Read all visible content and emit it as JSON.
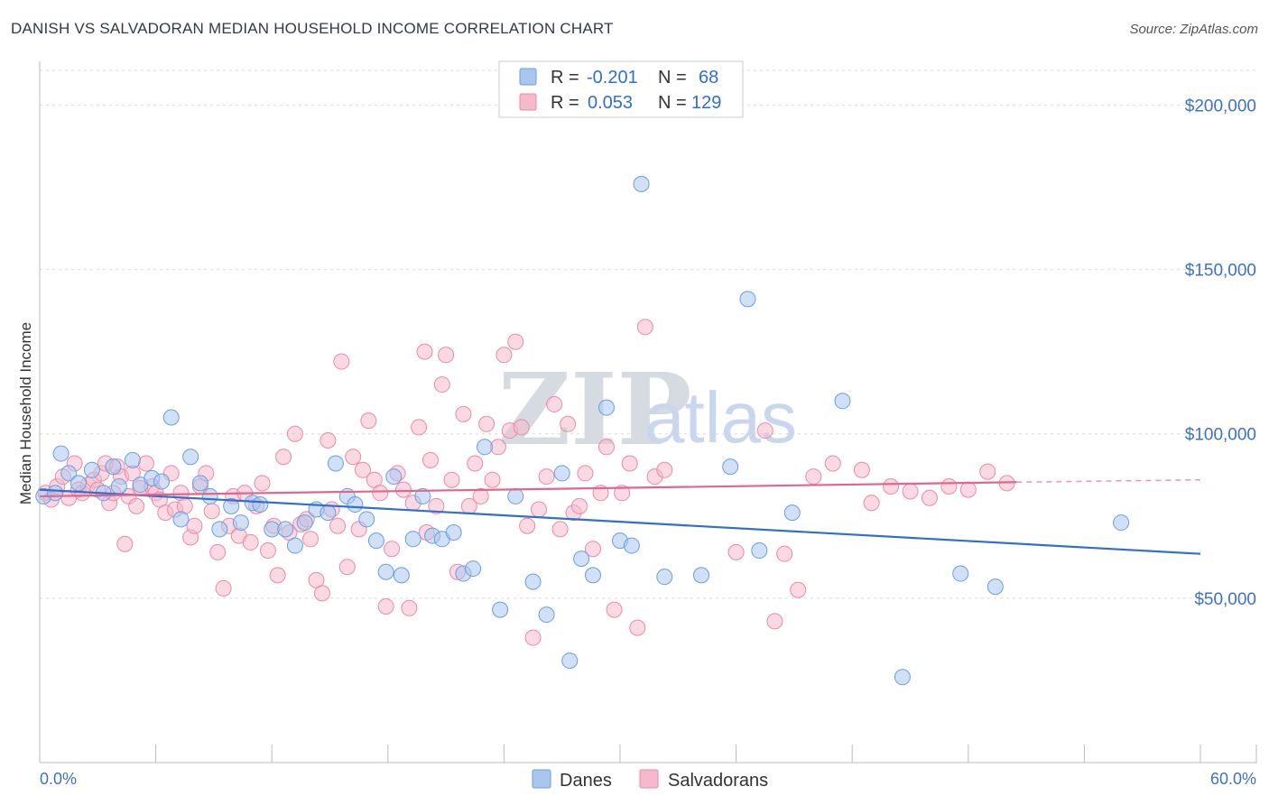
{
  "title": "DANISH VS SALVADORAN MEDIAN HOUSEHOLD INCOME CORRELATION CHART",
  "source": "Source: ZipAtlas.com",
  "watermark": {
    "zip": "ZIP",
    "atlas": "atlas"
  },
  "colors": {
    "danes_fill": "#a9c6ee",
    "danes_stroke": "#6b9de0",
    "danes_line": "#2f6fd0",
    "salv_fill": "#f6b9cb",
    "salv_stroke": "#e88aa8",
    "salv_line": "#e0668f",
    "axis_text": "#3d72c4",
    "grid": "#d9d9d9"
  },
  "legend": {
    "rows": [
      {
        "r_label": "R =",
        "r_value": "-0.201",
        "n_label": "N =",
        "n_value": "68"
      },
      {
        "r_label": "R =",
        "r_value": "0.053",
        "n_label": "N =",
        "n_value": "129"
      }
    ]
  },
  "bottom_legend": {
    "danes": "Danes",
    "salvadorans": "Salvadorans"
  },
  "chart_data": {
    "type": "scatter",
    "title": "DANISH VS SALVADORAN MEDIAN HOUSEHOLD INCOME CORRELATION CHART",
    "xlabel": "",
    "ylabel": "Median Household Income",
    "xlim": [
      0,
      60
    ],
    "ylim": [
      0,
      210000
    ],
    "x_tick_labels": [
      "0.0%",
      "60.0%"
    ],
    "y_ticks": [
      50000,
      100000,
      150000,
      200000
    ],
    "y_tick_labels": [
      "$50,000",
      "$100,000",
      "$150,000",
      "$200,000"
    ],
    "grid": true,
    "legend_position": "top-center",
    "series": [
      {
        "name": "Danes",
        "r": -0.201,
        "n": 68,
        "trend": {
          "x": [
            0,
            60
          ],
          "y": [
            83000,
            63500
          ]
        },
        "points": [
          [
            0.2,
            81000
          ],
          [
            0.8,
            82000
          ],
          [
            1.1,
            94000
          ],
          [
            1.5,
            88000
          ],
          [
            2.0,
            85000
          ],
          [
            2.7,
            89000
          ],
          [
            3.3,
            82000
          ],
          [
            3.8,
            90000
          ],
          [
            4.1,
            84000
          ],
          [
            4.8,
            92000
          ],
          [
            5.2,
            84500
          ],
          [
            5.8,
            86500
          ],
          [
            6.3,
            85500
          ],
          [
            6.8,
            105000
          ],
          [
            7.3,
            74000
          ],
          [
            7.8,
            93000
          ],
          [
            8.3,
            85000
          ],
          [
            8.8,
            81000
          ],
          [
            9.3,
            71000
          ],
          [
            9.9,
            78000
          ],
          [
            10.4,
            73000
          ],
          [
            11.0,
            79000
          ],
          [
            11.4,
            78500
          ],
          [
            12.0,
            71000
          ],
          [
            12.7,
            71000
          ],
          [
            13.2,
            66000
          ],
          [
            13.7,
            73000
          ],
          [
            14.3,
            77000
          ],
          [
            14.9,
            76000
          ],
          [
            15.3,
            91000
          ],
          [
            15.9,
            81000
          ],
          [
            16.3,
            78500
          ],
          [
            16.9,
            74000
          ],
          [
            17.4,
            67500
          ],
          [
            17.9,
            58000
          ],
          [
            18.3,
            87000
          ],
          [
            18.7,
            57000
          ],
          [
            19.3,
            68000
          ],
          [
            19.8,
            81000
          ],
          [
            20.3,
            69000
          ],
          [
            20.8,
            68000
          ],
          [
            21.4,
            70000
          ],
          [
            21.9,
            57500
          ],
          [
            22.4,
            59000
          ],
          [
            23.0,
            96000
          ],
          [
            23.8,
            46500
          ],
          [
            24.6,
            81000
          ],
          [
            25.5,
            55000
          ],
          [
            26.2,
            45000
          ],
          [
            27.0,
            88000
          ],
          [
            27.4,
            31000
          ],
          [
            28.0,
            62000
          ],
          [
            28.6,
            57000
          ],
          [
            29.3,
            108000
          ],
          [
            30.0,
            67500
          ],
          [
            30.6,
            66000
          ],
          [
            31.1,
            176000
          ],
          [
            32.3,
            56500
          ],
          [
            34.2,
            57000
          ],
          [
            35.7,
            90000
          ],
          [
            36.6,
            141000
          ],
          [
            37.2,
            64500
          ],
          [
            38.9,
            76000
          ],
          [
            41.5,
            110000
          ],
          [
            44.6,
            26000
          ],
          [
            47.6,
            57500
          ],
          [
            49.4,
            53500
          ],
          [
            55.9,
            73000
          ]
        ]
      },
      {
        "name": "Salvadorans",
        "r": 0.053,
        "n": 129,
        "trend": {
          "x": [
            0,
            50.5
          ],
          "y": [
            81000,
            85300
          ]
        },
        "trend_dashed": {
          "x": [
            50.5,
            60
          ],
          "y": [
            85300,
            86000
          ]
        },
        "points": [
          [
            0.3,
            82000
          ],
          [
            0.6,
            80000
          ],
          [
            0.9,
            84000
          ],
          [
            1.2,
            87000
          ],
          [
            1.5,
            80500
          ],
          [
            1.8,
            91000
          ],
          [
            2.0,
            83000
          ],
          [
            2.2,
            82000
          ],
          [
            2.5,
            84500
          ],
          [
            2.8,
            86000
          ],
          [
            3.0,
            83000
          ],
          [
            3.2,
            88000
          ],
          [
            3.4,
            91000
          ],
          [
            3.6,
            79000
          ],
          [
            3.8,
            82000
          ],
          [
            4.0,
            90000
          ],
          [
            4.2,
            87000
          ],
          [
            4.4,
            66500
          ],
          [
            4.6,
            81000
          ],
          [
            4.8,
            88000
          ],
          [
            5.0,
            78000
          ],
          [
            5.2,
            83500
          ],
          [
            5.5,
            91000
          ],
          [
            5.8,
            84000
          ],
          [
            6.0,
            82000
          ],
          [
            6.2,
            80000
          ],
          [
            6.5,
            76000
          ],
          [
            6.8,
            88000
          ],
          [
            7.0,
            77000
          ],
          [
            7.3,
            82000
          ],
          [
            7.5,
            78000
          ],
          [
            7.8,
            68500
          ],
          [
            8.0,
            72000
          ],
          [
            8.3,
            84000
          ],
          [
            8.6,
            88000
          ],
          [
            8.9,
            76500
          ],
          [
            9.2,
            64000
          ],
          [
            9.5,
            53000
          ],
          [
            9.8,
            72000
          ],
          [
            10.0,
            81000
          ],
          [
            10.3,
            69000
          ],
          [
            10.6,
            82000
          ],
          [
            10.9,
            67000
          ],
          [
            11.2,
            78000
          ],
          [
            11.5,
            85000
          ],
          [
            11.8,
            64500
          ],
          [
            12.1,
            72000
          ],
          [
            12.3,
            57000
          ],
          [
            12.6,
            93000
          ],
          [
            12.9,
            70000
          ],
          [
            13.2,
            100000
          ],
          [
            13.5,
            72500
          ],
          [
            13.8,
            74000
          ],
          [
            14.0,
            68000
          ],
          [
            14.3,
            55500
          ],
          [
            14.6,
            51500
          ],
          [
            14.9,
            98000
          ],
          [
            15.1,
            77000
          ],
          [
            15.4,
            72000
          ],
          [
            15.6,
            122000
          ],
          [
            15.9,
            59500
          ],
          [
            16.2,
            93000
          ],
          [
            16.5,
            71000
          ],
          [
            16.7,
            89000
          ],
          [
            17.0,
            104000
          ],
          [
            17.3,
            86000
          ],
          [
            17.6,
            82000
          ],
          [
            17.9,
            47500
          ],
          [
            18.2,
            65000
          ],
          [
            18.5,
            88000
          ],
          [
            18.8,
            83000
          ],
          [
            19.1,
            47000
          ],
          [
            19.3,
            79000
          ],
          [
            19.6,
            102000
          ],
          [
            19.9,
            125000
          ],
          [
            20.2,
            92000
          ],
          [
            20.5,
            78000
          ],
          [
            20.8,
            115000
          ],
          [
            21.0,
            124000
          ],
          [
            21.3,
            86000
          ],
          [
            21.6,
            58000
          ],
          [
            21.9,
            106000
          ],
          [
            22.2,
            78000
          ],
          [
            22.5,
            91000
          ],
          [
            22.8,
            81000
          ],
          [
            23.1,
            103000
          ],
          [
            23.4,
            86000
          ],
          [
            23.7,
            96000
          ],
          [
            24.0,
            124000
          ],
          [
            24.3,
            101000
          ],
          [
            24.6,
            128000
          ],
          [
            24.9,
            102000
          ],
          [
            25.2,
            72000
          ],
          [
            25.5,
            38000
          ],
          [
            25.8,
            77000
          ],
          [
            26.2,
            87000
          ],
          [
            26.6,
            109000
          ],
          [
            26.9,
            71000
          ],
          [
            27.3,
            103000
          ],
          [
            27.6,
            76000
          ],
          [
            27.9,
            78000
          ],
          [
            28.2,
            88000
          ],
          [
            28.6,
            65000
          ],
          [
            29.0,
            82000
          ],
          [
            29.3,
            96000
          ],
          [
            29.7,
            46500
          ],
          [
            30.1,
            82000
          ],
          [
            30.5,
            91000
          ],
          [
            30.9,
            41000
          ],
          [
            31.3,
            132500
          ],
          [
            31.8,
            87000
          ],
          [
            32.3,
            89000
          ],
          [
            36.0,
            64000
          ],
          [
            37.5,
            101000
          ],
          [
            38.0,
            43000
          ],
          [
            38.5,
            63500
          ],
          [
            39.2,
            52500
          ],
          [
            40.0,
            87000
          ],
          [
            41.0,
            91000
          ],
          [
            42.5,
            89000
          ],
          [
            43.0,
            79000
          ],
          [
            44.0,
            84000
          ],
          [
            45.0,
            82500
          ],
          [
            46.0,
            80500
          ],
          [
            47.0,
            84000
          ],
          [
            48.0,
            83000
          ],
          [
            49.0,
            88500
          ],
          [
            50.0,
            85000
          ],
          [
            20.0,
            70000
          ]
        ]
      }
    ]
  }
}
